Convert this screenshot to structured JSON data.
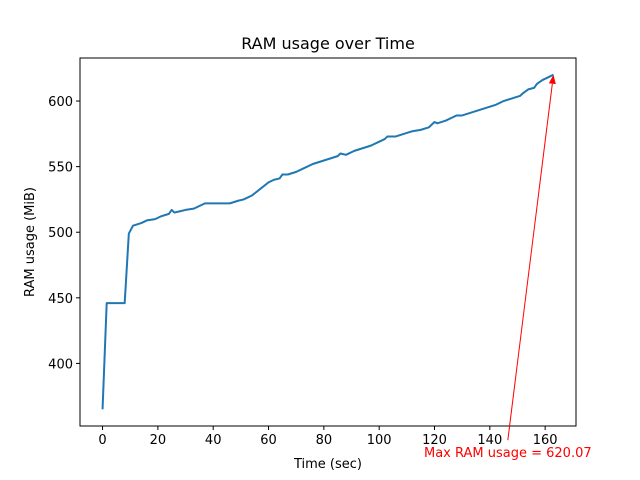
{
  "chart_data": {
    "type": "line",
    "title": "RAM usage over Time",
    "xlabel": "Time (sec)",
    "ylabel": "RAM usage (MiB)",
    "xlim": [
      -8.15,
      171.15
    ],
    "ylim": [
      352.3,
      632.8
    ],
    "xticks": [
      0,
      20,
      40,
      60,
      80,
      100,
      120,
      140,
      160
    ],
    "yticks": [
      400,
      450,
      500,
      550,
      600
    ],
    "grid": false,
    "series": [
      {
        "color": "#1f77b4",
        "x": [
          0,
          1.5,
          3,
          5,
          8,
          9.5,
          11,
          14,
          16,
          19,
          21,
          24,
          25,
          26,
          28,
          30,
          33,
          35,
          37,
          40,
          43,
          46,
          49,
          51,
          54,
          57,
          60,
          62,
          64,
          65,
          67,
          70,
          73,
          76,
          79,
          82,
          85,
          86,
          88,
          91,
          94,
          97,
          100,
          102,
          103,
          106,
          109,
          112,
          115,
          118,
          120,
          121,
          124,
          127,
          128,
          130,
          133,
          136,
          139,
          142,
          145,
          148,
          151,
          152,
          154,
          156,
          157,
          159,
          161,
          163
        ],
        "values": [
          365,
          446,
          446,
          446,
          446,
          499,
          505,
          507,
          509,
          510,
          512,
          514,
          517,
          515,
          516,
          517,
          518,
          520,
          522,
          522,
          522,
          522,
          524,
          525,
          528,
          533,
          538,
          540,
          541,
          544,
          544,
          546,
          549,
          552,
          554,
          556,
          558,
          560,
          559,
          562,
          564,
          566,
          569,
          571,
          573,
          573,
          575,
          577,
          578,
          580,
          584,
          583,
          585,
          588,
          589,
          589,
          591,
          593,
          595,
          597,
          600,
          602,
          604,
          606,
          609,
          610,
          613,
          616,
          618,
          620.07
        ]
      }
    ],
    "annotation": {
      "text": "Max RAM usage = 620.07",
      "color": "#ff0000",
      "point": [
        163,
        620.07
      ],
      "text_anchor_data": [
        146.5,
        341.5
      ]
    }
  }
}
